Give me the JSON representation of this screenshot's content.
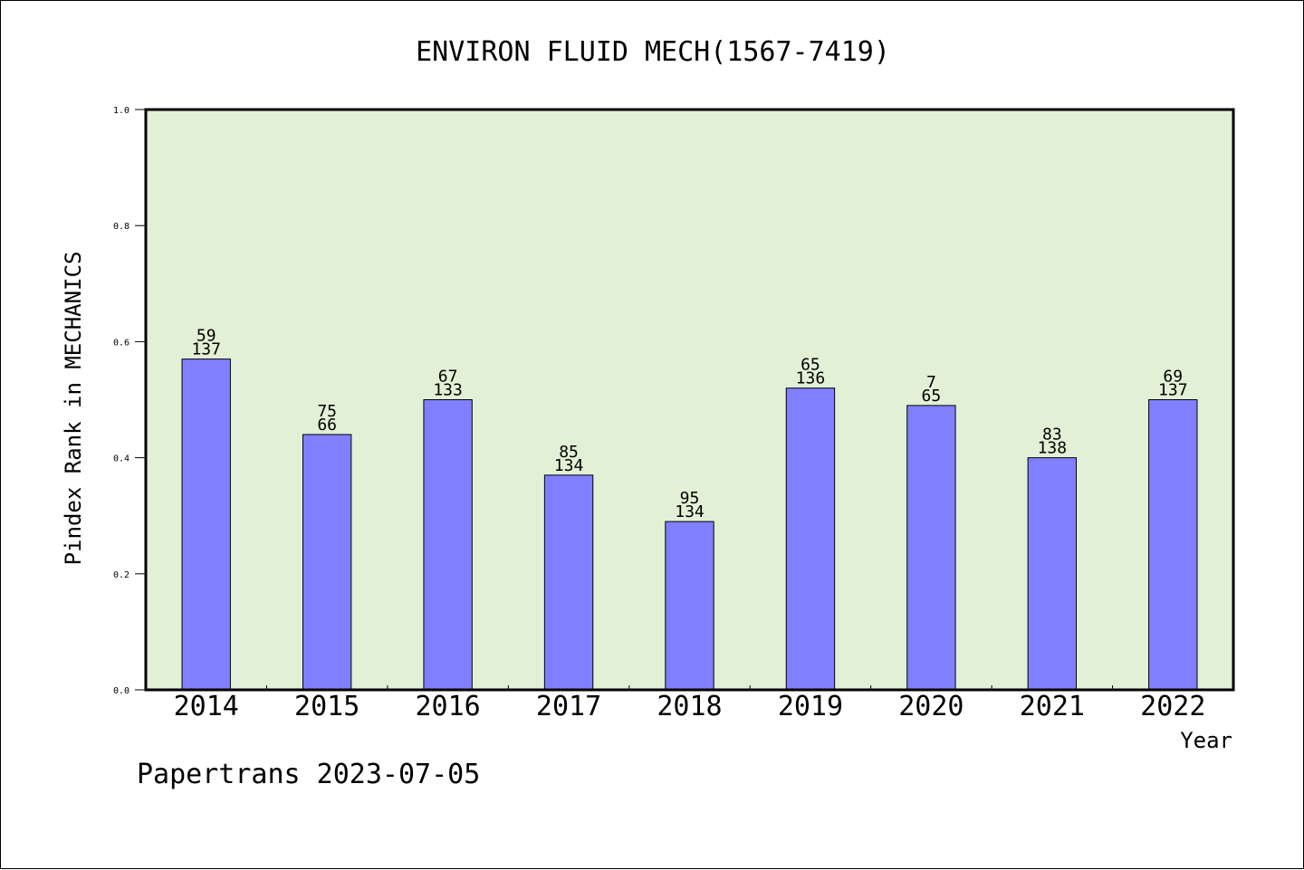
{
  "chart_data": {
    "type": "bar",
    "title": "ENVIRON FLUID MECH(1567-7419)",
    "xlabel": "Year",
    "ylabel": "Pindex Rank in MECHANICS",
    "ylim": [
      0,
      1.0
    ],
    "yticks": [
      "0.0",
      "0.2",
      "0.4",
      "0.6",
      "0.8",
      "1.0"
    ],
    "categories": [
      "2014",
      "2015",
      "2016",
      "2017",
      "2018",
      "2019",
      "2020",
      "2021",
      "2022"
    ],
    "values": [
      0.57,
      0.44,
      0.5,
      0.37,
      0.29,
      0.52,
      0.49,
      0.4,
      0.5
    ],
    "labels_top": [
      "59",
      "75",
      "67",
      "85",
      "95",
      "65",
      "7",
      "83",
      "69"
    ],
    "labels_bottom": [
      "137",
      "66",
      "133",
      "134",
      "134",
      "136",
      "65",
      "138",
      "137"
    ],
    "grid": false,
    "colors": {
      "plot_bg": "#e2f0d6",
      "bar": "#8080ff",
      "bar_edge": "#000000"
    }
  },
  "footer": {
    "text": "Papertrans 2023-07-05"
  }
}
